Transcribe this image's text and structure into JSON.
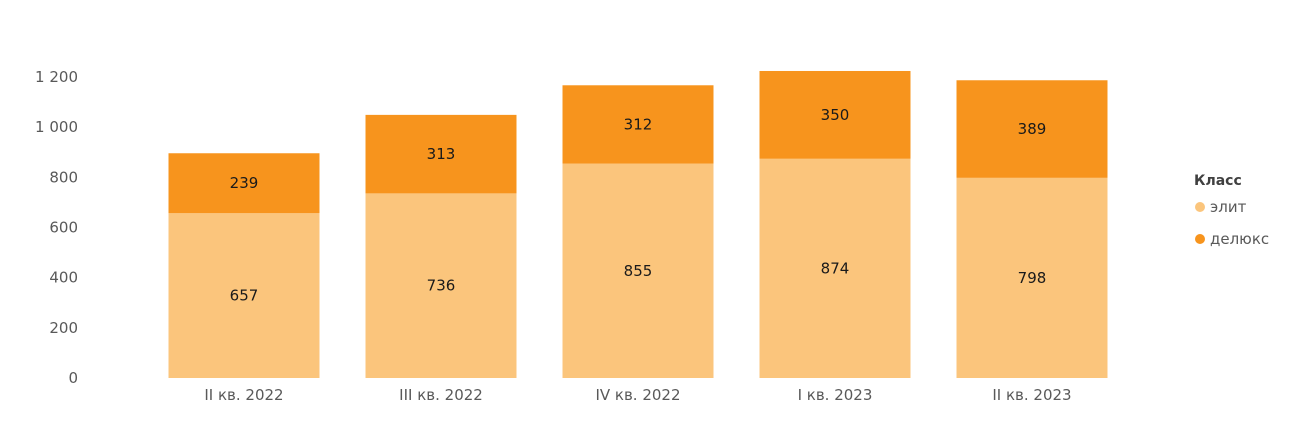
{
  "chart_data": {
    "type": "bar",
    "stacked": true,
    "categories": [
      "II кв. 2022",
      "III кв. 2022",
      "IV кв. 2022",
      "I кв. 2023",
      "II кв. 2023"
    ],
    "series": [
      {
        "name": "элит",
        "values": [
          657,
          736,
          855,
          874,
          798
        ],
        "color": "#FBC57C"
      },
      {
        "name": "делюкс",
        "values": [
          239,
          313,
          312,
          350,
          389
        ],
        "color": "#F7941D"
      }
    ],
    "y_ticks": [
      0,
      200,
      400,
      600,
      800,
      1000,
      1200
    ],
    "y_tick_labels": [
      "0",
      "200",
      "400",
      "600",
      "800",
      "1 000",
      "1 200"
    ],
    "ylim": [
      0,
      1200
    ],
    "grid": false,
    "legend": {
      "title": "Класс",
      "position": "right"
    }
  }
}
